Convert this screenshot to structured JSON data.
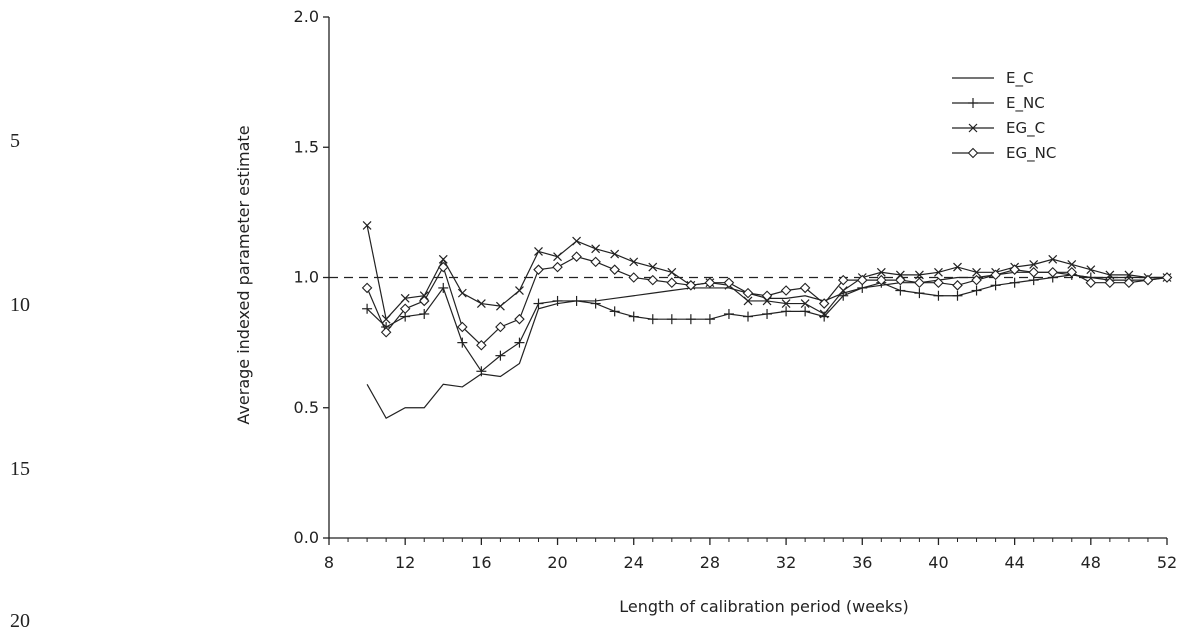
{
  "line_numbers": [
    "5",
    "10",
    "15",
    "20"
  ],
  "chart_data": {
    "type": "line",
    "title": "",
    "xlabel": "Length of calibration period (weeks)",
    "ylabel": "Average indexed parameter estimate",
    "xlim": [
      8,
      52
    ],
    "ylim": [
      0.0,
      2.0
    ],
    "xticks": [
      8,
      12,
      16,
      20,
      24,
      28,
      32,
      36,
      40,
      44,
      48,
      52
    ],
    "yticks": [
      "0.0",
      "0.5",
      "1.0",
      "1.5",
      "2.0"
    ],
    "reference_line": 1.0,
    "legend_position": "top-right",
    "x": [
      10,
      11,
      12,
      13,
      14,
      15,
      16,
      17,
      18,
      19,
      20,
      21,
      22,
      23,
      24,
      25,
      26,
      27,
      28,
      29,
      30,
      31,
      32,
      33,
      34,
      35,
      36,
      37,
      38,
      39,
      40,
      41,
      42,
      43,
      44,
      45,
      46,
      47,
      48,
      49,
      50,
      51,
      52
    ],
    "series": [
      {
        "name": "E_C",
        "marker": "none",
        "values": [
          0.59,
          0.46,
          0.5,
          0.5,
          0.59,
          0.58,
          0.63,
          0.62,
          0.67,
          0.88,
          0.9,
          0.91,
          0.91,
          0.92,
          0.93,
          0.94,
          0.95,
          0.96,
          0.96,
          0.96,
          0.94,
          0.92,
          0.92,
          0.93,
          0.91,
          0.94,
          0.96,
          0.97,
          0.98,
          0.98,
          0.99,
          1.0,
          1.0,
          1.01,
          1.02,
          1.02,
          1.02,
          1.01,
          1.0,
          1.0,
          1.0,
          1.0,
          1.0
        ]
      },
      {
        "name": "E_NC",
        "marker": "plus",
        "values": [
          0.88,
          0.81,
          0.85,
          0.86,
          0.96,
          0.75,
          0.64,
          0.7,
          0.75,
          0.9,
          0.91,
          0.91,
          0.9,
          0.87,
          0.85,
          0.84,
          0.84,
          0.84,
          0.84,
          0.86,
          0.85,
          0.86,
          0.87,
          0.87,
          0.85,
          0.93,
          0.96,
          0.98,
          0.95,
          0.94,
          0.93,
          0.93,
          0.95,
          0.97,
          0.98,
          0.99,
          1.0,
          1.01,
          1.0,
          0.99,
          0.99,
          0.99,
          1.0
        ]
      },
      {
        "name": "EG_C",
        "marker": "x",
        "values": [
          1.2,
          0.84,
          0.92,
          0.93,
          1.07,
          0.94,
          0.9,
          0.89,
          0.95,
          1.1,
          1.08,
          1.14,
          1.11,
          1.09,
          1.06,
          1.04,
          1.02,
          0.97,
          0.98,
          0.97,
          0.91,
          0.91,
          0.9,
          0.9,
          0.86,
          0.95,
          1.0,
          1.02,
          1.01,
          1.01,
          1.02,
          1.04,
          1.02,
          1.02,
          1.04,
          1.05,
          1.07,
          1.05,
          1.03,
          1.01,
          1.01,
          1.0,
          1.0
        ]
      },
      {
        "name": "EG_NC",
        "marker": "circle",
        "values": [
          0.96,
          0.79,
          0.88,
          0.91,
          1.04,
          0.81,
          0.74,
          0.81,
          0.84,
          1.03,
          1.04,
          1.08,
          1.06,
          1.03,
          1.0,
          0.99,
          0.98,
          0.97,
          0.98,
          0.98,
          0.94,
          0.93,
          0.95,
          0.96,
          0.9,
          0.99,
          0.99,
          0.99,
          0.99,
          0.98,
          0.98,
          0.97,
          0.99,
          1.01,
          1.03,
          1.02,
          1.02,
          1.02,
          0.98,
          0.98,
          0.98,
          0.99,
          1.0
        ]
      }
    ]
  }
}
